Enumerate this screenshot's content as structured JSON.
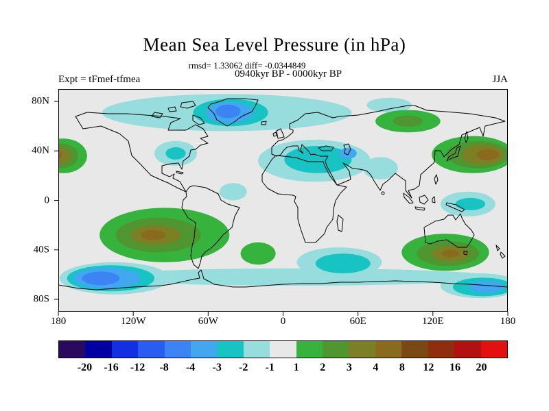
{
  "header": {
    "title": "Mean Sea Level Pressure (in hPa)",
    "stats": "rmsd= 1.33062 diff= -0.0344849",
    "period": "0940kyr BP - 0000kyr BP",
    "experiment": "Expt = tFmef-tfmea",
    "season": "JJA"
  },
  "chart_data": {
    "type": "heatmap",
    "subtype": "filled-contour-world-map",
    "title": "Mean Sea Level Pressure (in hPa)",
    "units": "hPa",
    "stats": {
      "rmsd": 1.33062,
      "diff": -0.0344849
    },
    "period": "0940kyr BP - 0000kyr BP",
    "experiment": "tFmef-tfmea",
    "season": "JJA",
    "background_color": "#e8e8e8",
    "lon_range": [
      -180,
      180
    ],
    "lat_range": [
      -90,
      90
    ],
    "levels": [
      -20,
      -16,
      -12,
      -8,
      -4,
      -3,
      -2,
      -1,
      1,
      2,
      3,
      4,
      8,
      12,
      16,
      20
    ],
    "level_labels": [
      "-20",
      "-16",
      "-12",
      "-8",
      "-4",
      "-3",
      "-2",
      "-1",
      "1",
      "2",
      "3",
      "4",
      "8",
      "12",
      "16",
      "20"
    ],
    "palette": [
      "#2a0a5e",
      "#0000a0",
      "#1230e0",
      "#2a5cf0",
      "#3c84f4",
      "#41a8f0",
      "#17c3c3",
      "#97dddd",
      "#e8e8e8",
      "#35b33c",
      "#4f9530",
      "#7c7f23",
      "#8a6a1c",
      "#7a4812",
      "#8f2e0e",
      "#b21111",
      "#e41010"
    ],
    "x_ticks": [
      {
        "label": "180",
        "lon": -180
      },
      {
        "label": "120W",
        "lon": -120
      },
      {
        "label": "60W",
        "lon": -60
      },
      {
        "label": "0",
        "lon": 0
      },
      {
        "label": "60E",
        "lon": 60
      },
      {
        "label": "120E",
        "lon": 120
      },
      {
        "label": "180",
        "lon": 180
      }
    ],
    "y_ticks": [
      {
        "label": "80N",
        "lat": 80
      },
      {
        "label": "40N",
        "lat": 40
      },
      {
        "label": "0",
        "lat": 0
      },
      {
        "label": "40S",
        "lat": -40
      },
      {
        "label": "80S",
        "lat": -80
      }
    ],
    "regions": [
      {
        "name": "arctic-low-band",
        "lon": -45,
        "lat": 71,
        "rlon": 100,
        "rlat": 15,
        "value": -1.5
      },
      {
        "name": "greenland-low-mid",
        "lon": -42,
        "lat": 71,
        "rlon": 30,
        "rlat": 11,
        "value": -2.5
      },
      {
        "name": "greenland-low-inner",
        "lon": -43,
        "lat": 71,
        "rlon": 19,
        "rlat": 8.5,
        "value": -3.5
      },
      {
        "name": "greenland-low-core",
        "lon": -44,
        "lat": 72,
        "rlon": 10,
        "rlat": 5.5,
        "value": -5
      },
      {
        "name": "arctic-east-low",
        "lon": 85,
        "lat": 77,
        "rlon": 18,
        "rlat": 6,
        "value": -1.5
      },
      {
        "name": "siberia-high",
        "lon": 100,
        "lat": 64,
        "rlon": 26,
        "rlat": 9,
        "value": 1.5
      },
      {
        "name": "siberia-high-inner",
        "lon": 100,
        "lat": 64,
        "rlon": 12,
        "rlat": 4.5,
        "value": 2.5
      },
      {
        "name": "northwest-pacific-high",
        "lon": 152,
        "lat": 37,
        "rlon": 33,
        "rlat": 15,
        "value": 1.5
      },
      {
        "name": "northwest-pacific-high-mid",
        "lon": 156,
        "lat": 37,
        "rlon": 25,
        "rlat": 11,
        "value": 2.5
      },
      {
        "name": "northwest-pacific-high-inner",
        "lon": 160,
        "lat": 37,
        "rlon": 17,
        "rlat": 8,
        "value": 3.5
      },
      {
        "name": "northwest-pacific-high-core",
        "lon": 164,
        "lat": 37,
        "rlon": 9,
        "rlat": 4.5,
        "value": 5
      },
      {
        "name": "northeast-pacific-high",
        "lon": -176,
        "lat": 36,
        "rlon": 19,
        "rlat": 14,
        "value": 1.5
      },
      {
        "name": "northeast-pacific-high-mid",
        "lon": -178,
        "lat": 36,
        "rlon": 14,
        "rlat": 10,
        "value": 2.5
      },
      {
        "name": "northeast-pacific-high-inner",
        "lon": -180,
        "lat": 36,
        "rlon": 10,
        "rlat": 7,
        "value": 3.5
      },
      {
        "name": "northeast-pacific-high-core",
        "lon": -182,
        "lat": 37,
        "rlon": 5,
        "rlat": 4,
        "value": 5
      },
      {
        "name": "north-america-low",
        "lon": -86,
        "lat": 38,
        "rlon": 17,
        "rlat": 10,
        "value": -1.5
      },
      {
        "name": "north-america-low-inner",
        "lon": -86,
        "lat": 38,
        "rlon": 8,
        "rlat": 5,
        "value": -2.5
      },
      {
        "name": "europe-north-africa-low",
        "lon": 25,
        "lat": 32,
        "rlon": 45,
        "rlat": 17,
        "value": -1.5
      },
      {
        "name": "mediterranean-low-inner",
        "lon": 28,
        "lat": 33,
        "rlon": 27,
        "rlat": 11,
        "value": -2.5
      },
      {
        "name": "caspian-low-core",
        "lon": 52,
        "lat": 38,
        "rlon": 7,
        "rlat": 4.5,
        "value": -3.5
      },
      {
        "name": "india-low",
        "lon": 78,
        "lat": 26,
        "rlon": 14,
        "rlat": 9,
        "value": -1.5
      },
      {
        "name": "tropical-atlantic-low",
        "lon": -40,
        "lat": 7,
        "rlon": 11,
        "rlat": 7,
        "value": -1.5
      },
      {
        "name": "west-pacific-equatorial-low",
        "lon": 148,
        "lat": -3,
        "rlon": 22,
        "rlat": 10,
        "value": -1.5
      },
      {
        "name": "west-pacific-equatorial-low-inner",
        "lon": 150,
        "lat": -3,
        "rlon": 12,
        "rlat": 5,
        "value": -2.5
      },
      {
        "name": "antarctic-coastal-low-band",
        "lon": 10,
        "lat": -62,
        "rlon": 160,
        "rlat": 7,
        "value": -1.5
      },
      {
        "name": "south-pacific-high",
        "lon": -95,
        "lat": -28,
        "rlon": 52,
        "rlat": 22,
        "value": 1.5
      },
      {
        "name": "south-pacific-high-mid",
        "lon": -100,
        "lat": -28,
        "rlon": 34,
        "rlat": 14,
        "value": 2.5
      },
      {
        "name": "south-pacific-high-inner",
        "lon": -102,
        "lat": -28,
        "rlon": 20,
        "rlat": 8,
        "value": 3.5
      },
      {
        "name": "south-pacific-high-core",
        "lon": -104,
        "lat": -28,
        "rlon": 10,
        "rlat": 4,
        "value": 5
      },
      {
        "name": "south-atlantic-high",
        "lon": -20,
        "lat": -43,
        "rlon": 14,
        "rlat": 9,
        "value": 1.5
      },
      {
        "name": "south-indian-low",
        "lon": 45,
        "lat": -50,
        "rlon": 34,
        "rlat": 12,
        "value": -1.5
      },
      {
        "name": "south-indian-low-inner",
        "lon": 48,
        "lat": -51,
        "rlon": 22,
        "rlat": 8,
        "value": -2.5
      },
      {
        "name": "australia-south-high",
        "lon": 130,
        "lat": -42,
        "rlon": 35,
        "rlat": 15,
        "value": 1.5
      },
      {
        "name": "australia-south-high-mid",
        "lon": 132,
        "lat": -43,
        "rlon": 25,
        "rlat": 10,
        "value": 2.5
      },
      {
        "name": "australia-south-high-inner",
        "lon": 134,
        "lat": -43,
        "rlon": 15,
        "rlat": 6.5,
        "value": 3.5
      },
      {
        "name": "australia-south-high-core",
        "lon": 134,
        "lat": -43,
        "rlon": 7,
        "rlat": 3,
        "value": 5
      },
      {
        "name": "south-pacific-polar-low",
        "lon": -135,
        "lat": -63,
        "rlon": 44,
        "rlat": 13,
        "value": -1.5
      },
      {
        "name": "south-pacific-polar-low-mid",
        "lon": -138,
        "lat": -63,
        "rlon": 35,
        "rlat": 10.5,
        "value": -2.5
      },
      {
        "name": "south-pacific-polar-low-inner",
        "lon": -141,
        "lat": -63,
        "rlon": 27,
        "rlat": 8.5,
        "value": -3.5
      },
      {
        "name": "south-pacific-polar-low-core",
        "lon": -146,
        "lat": -63,
        "rlon": 15,
        "rlat": 5.5,
        "value": -5
      },
      {
        "name": "ross-sea-low-outer",
        "lon": 158,
        "lat": -69,
        "rlon": 32,
        "rlat": 10,
        "value": -1.5
      },
      {
        "name": "ross-sea-low",
        "lon": 160,
        "lat": -70,
        "rlon": 24,
        "rlat": 7.5,
        "value": -2.5
      },
      {
        "name": "ross-sea-low-inner",
        "lon": 163,
        "lat": -70,
        "rlon": 14,
        "rlat": 5,
        "value": -3.5
      }
    ]
  }
}
